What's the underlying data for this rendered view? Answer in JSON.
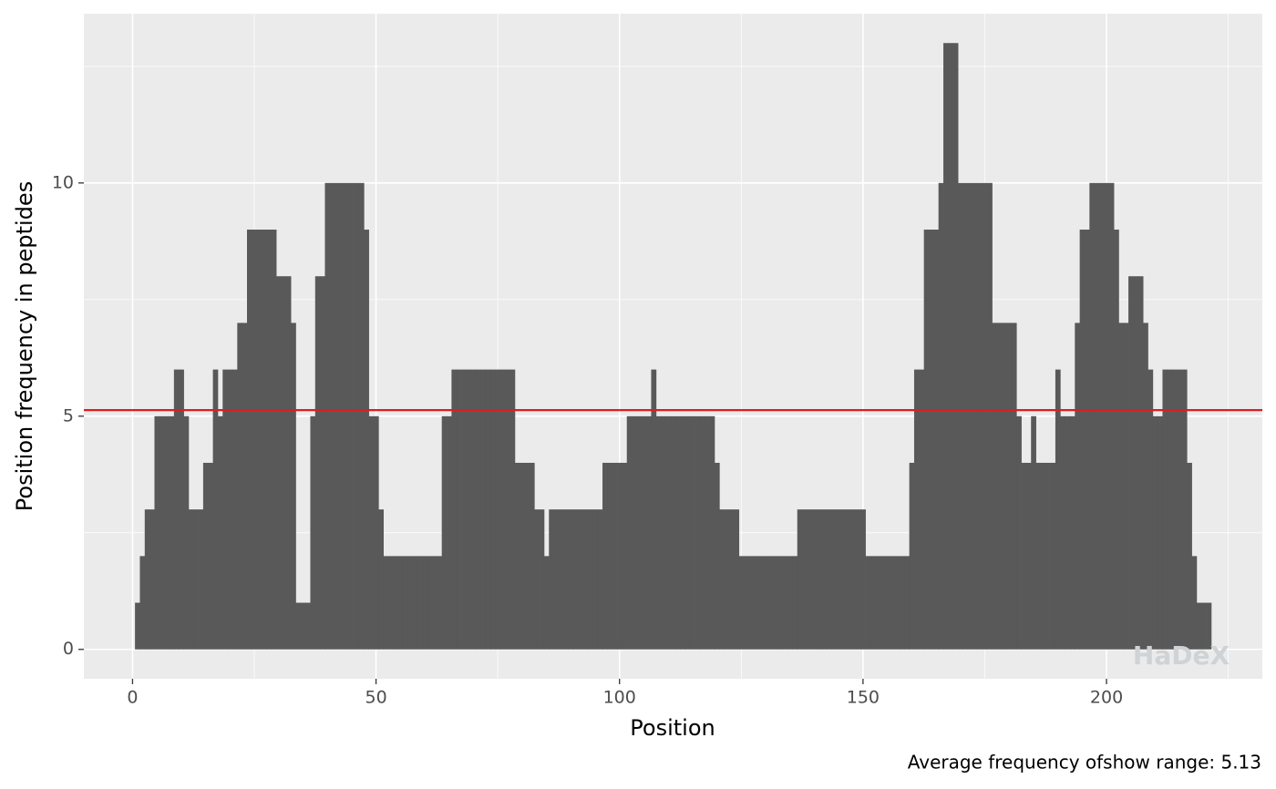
{
  "chart_data": {
    "type": "bar",
    "xlabel": "Position",
    "ylabel": "Position frequency in peptides",
    "caption": "Average frequency ofshow range: 5.13",
    "watermark": "HaDeX",
    "color": "#595959",
    "hline": 5.13,
    "hline_color": "#e41a1c",
    "grid": true,
    "xlim": [
      -10,
      232
    ],
    "ylim": [
      -0.63,
      13.63
    ],
    "xticks": [
      0,
      50,
      100,
      150,
      200
    ],
    "yticks": [
      0,
      5,
      10
    ],
    "x": [
      1,
      2,
      3,
      4,
      5,
      6,
      7,
      8,
      9,
      10,
      11,
      12,
      13,
      14,
      15,
      16,
      17,
      18,
      19,
      20,
      21,
      22,
      23,
      24,
      25,
      26,
      27,
      28,
      29,
      30,
      31,
      32,
      33,
      34,
      35,
      36,
      37,
      38,
      39,
      40,
      41,
      42,
      43,
      44,
      45,
      46,
      47,
      48,
      49,
      50,
      51,
      52,
      53,
      54,
      55,
      56,
      57,
      58,
      59,
      60,
      61,
      62,
      63,
      64,
      65,
      66,
      67,
      68,
      69,
      70,
      71,
      72,
      73,
      74,
      75,
      76,
      77,
      78,
      79,
      80,
      81,
      82,
      83,
      84,
      85,
      86,
      87,
      88,
      89,
      90,
      91,
      92,
      93,
      94,
      95,
      96,
      97,
      98,
      99,
      100,
      101,
      102,
      103,
      104,
      105,
      106,
      107,
      108,
      109,
      110,
      111,
      112,
      113,
      114,
      115,
      116,
      117,
      118,
      119,
      120,
      121,
      122,
      123,
      124,
      125,
      126,
      127,
      128,
      129,
      130,
      131,
      132,
      133,
      134,
      135,
      136,
      137,
      138,
      139,
      140,
      141,
      142,
      143,
      144,
      145,
      146,
      147,
      148,
      149,
      150,
      151,
      152,
      153,
      154,
      155,
      156,
      157,
      158,
      159,
      160,
      161,
      162,
      163,
      164,
      165,
      166,
      167,
      168,
      169,
      170,
      171,
      172,
      173,
      174,
      175,
      176,
      177,
      178,
      179,
      180,
      181,
      182,
      183,
      184,
      185,
      186,
      187,
      188,
      189,
      190,
      191,
      192,
      193,
      194,
      195,
      196,
      197,
      198,
      199,
      200,
      201,
      202,
      203,
      204,
      205,
      206,
      207,
      208,
      209,
      210,
      211,
      212,
      213,
      214,
      215,
      216,
      217,
      218,
      219,
      220,
      221
    ],
    "values": [
      1,
      2,
      3,
      3,
      5,
      5,
      5,
      5,
      6,
      6,
      5,
      3,
      3,
      3,
      4,
      4,
      6,
      5,
      6,
      6,
      6,
      7,
      7,
      9,
      9,
      9,
      9,
      9,
      9,
      8,
      8,
      8,
      7,
      1,
      1,
      1,
      5,
      8,
      8,
      10,
      10,
      10,
      10,
      10,
      10,
      10,
      10,
      9,
      5,
      5,
      3,
      2,
      2,
      2,
      2,
      2,
      2,
      2,
      2,
      2,
      2,
      2,
      2,
      5,
      5,
      6,
      6,
      6,
      6,
      6,
      6,
      6,
      6,
      6,
      6,
      6,
      6,
      6,
      4,
      4,
      4,
      4,
      3,
      3,
      2,
      3,
      3,
      3,
      3,
      3,
      3,
      3,
      3,
      3,
      3,
      3,
      4,
      4,
      4,
      4,
      4,
      5,
      5,
      5,
      5,
      5,
      6,
      5,
      5,
      5,
      5,
      5,
      5,
      5,
      5,
      5,
      5,
      5,
      5,
      4,
      3,
      3,
      3,
      3,
      2,
      2,
      2,
      2,
      2,
      2,
      2,
      2,
      2,
      2,
      2,
      2,
      3,
      3,
      3,
      3,
      3,
      3,
      3,
      3,
      3,
      3,
      3,
      3,
      3,
      3,
      2,
      2,
      2,
      2,
      2,
      2,
      2,
      2,
      2,
      4,
      6,
      6,
      9,
      9,
      9,
      10,
      13,
      13,
      13,
      10,
      10,
      10,
      10,
      10,
      10,
      10,
      7,
      7,
      7,
      7,
      7,
      5,
      4,
      4,
      5,
      4,
      4,
      4,
      4,
      6,
      5,
      5,
      5,
      7,
      9,
      9,
      10,
      10,
      10,
      10,
      10,
      9,
      7,
      7,
      8,
      8,
      8,
      7,
      6,
      5,
      5,
      6,
      6,
      6,
      6,
      6,
      4,
      2,
      1,
      1,
      1
    ]
  }
}
